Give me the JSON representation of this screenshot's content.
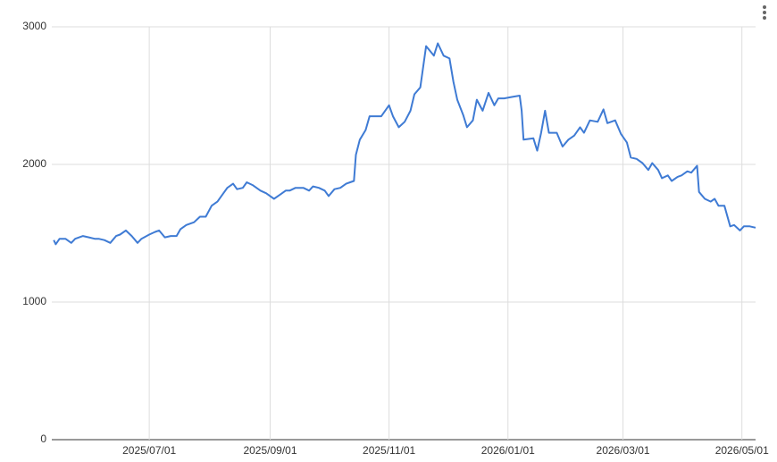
{
  "chart_data": {
    "type": "line",
    "x": [
      "2025/05/13",
      "2025/05/14",
      "2025/05/16",
      "2025/05/19",
      "2025/05/22",
      "2025/05/24",
      "2025/05/28",
      "2025/05/31",
      "2025/06/03",
      "2025/06/05",
      "2025/06/08",
      "2025/06/11",
      "2025/06/14",
      "2025/06/16",
      "2025/06/19",
      "2025/06/22",
      "2025/06/25",
      "2025/06/27",
      "2025/07/01",
      "2025/07/04",
      "2025/07/06",
      "2025/07/09",
      "2025/07/12",
      "2025/07/15",
      "2025/07/17",
      "2025/07/20",
      "2025/07/24",
      "2025/07/27",
      "2025/07/30",
      "2025/08/02",
      "2025/08/05",
      "2025/08/08",
      "2025/08/10",
      "2025/08/13",
      "2025/08/15",
      "2025/08/18",
      "2025/08/20",
      "2025/08/23",
      "2025/08/27",
      "2025/08/30",
      "2025/09/03",
      "2025/09/06",
      "2025/09/09",
      "2025/09/11",
      "2025/09/14",
      "2025/09/18",
      "2025/09/21",
      "2025/09/23",
      "2025/09/26",
      "2025/09/29",
      "2025/10/01",
      "2025/10/04",
      "2025/10/07",
      "2025/10/10",
      "2025/10/12",
      "2025/10/14",
      "2025/10/15",
      "2025/10/17",
      "2025/10/20",
      "2025/10/22",
      "2025/10/24",
      "2025/10/28",
      "2025/11/01",
      "2025/11/03",
      "2025/11/06",
      "2025/11/09",
      "2025/11/12",
      "2025/11/14",
      "2025/11/17",
      "2025/11/20",
      "2025/11/24",
      "2025/11/26",
      "2025/11/29",
      "2025/12/02",
      "2025/12/04",
      "2025/12/06",
      "2025/12/09",
      "2025/12/11",
      "2025/12/14",
      "2025/12/16",
      "2025/12/19",
      "2025/12/22",
      "2025/12/25",
      "2025/12/27",
      "2025/12/30",
      "2026/01/03",
      "2026/01/07",
      "2026/01/08",
      "2026/01/09",
      "2026/01/14",
      "2026/01/16",
      "2026/01/18",
      "2026/01/20",
      "2026/01/22",
      "2026/01/26",
      "2026/01/29",
      "2026/02/01",
      "2026/02/04",
      "2026/02/07",
      "2026/02/09",
      "2026/02/12",
      "2026/02/16",
      "2026/02/19",
      "2026/02/21",
      "2026/02/25",
      "2026/02/28",
      "2026/03/03",
      "2026/03/05",
      "2026/03/08",
      "2026/03/11",
      "2026/03/14",
      "2026/03/16",
      "2026/03/19",
      "2026/03/21",
      "2026/03/24",
      "2026/03/26",
      "2026/03/29",
      "2026/03/31",
      "2026/04/03",
      "2026/04/05",
      "2026/04/08",
      "2026/04/09",
      "2026/04/12",
      "2026/04/15",
      "2026/04/17",
      "2026/04/19",
      "2026/04/22",
      "2026/04/25",
      "2026/04/27",
      "2026/04/30",
      "2026/05/02",
      "2026/05/05",
      "2026/05/08"
    ],
    "series": [
      {
        "color": "#3f7bd4",
        "values": [
          1450,
          1420,
          1460,
          1460,
          1430,
          1460,
          1480,
          1470,
          1460,
          1460,
          1450,
          1430,
          1480,
          1490,
          1520,
          1480,
          1430,
          1460,
          1490,
          1510,
          1520,
          1470,
          1480,
          1480,
          1530,
          1560,
          1580,
          1620,
          1620,
          1700,
          1730,
          1790,
          1830,
          1860,
          1820,
          1830,
          1870,
          1850,
          1810,
          1790,
          1750,
          1780,
          1810,
          1810,
          1830,
          1830,
          1810,
          1840,
          1830,
          1810,
          1770,
          1820,
          1830,
          1860,
          1870,
          1880,
          2070,
          2180,
          2250,
          2350,
          2350,
          2350,
          2430,
          2350,
          2270,
          2310,
          2390,
          2510,
          2560,
          2860,
          2790,
          2880,
          2790,
          2770,
          2600,
          2470,
          2360,
          2270,
          2320,
          2470,
          2390,
          2520,
          2430,
          2480,
          2480,
          2490,
          2500,
          2390,
          2180,
          2190,
          2100,
          2230,
          2390,
          2230,
          2230,
          2130,
          2180,
          2210,
          2270,
          2230,
          2320,
          2310,
          2400,
          2300,
          2320,
          2220,
          2160,
          2050,
          2040,
          2010,
          1960,
          2010,
          1960,
          1900,
          1920,
          1880,
          1910,
          1920,
          1950,
          1940,
          1990,
          1800,
          1750,
          1730,
          1750,
          1700,
          1700,
          1550,
          1560,
          1520,
          1550,
          1550,
          1540
        ]
      }
    ],
    "xlim": [
      "2025/05/12",
      "2026/05/08"
    ],
    "xticks": [
      "2025/07/01",
      "2025/09/01",
      "2025/11/01",
      "2026/01/01",
      "2026/03/01",
      "2026/05/01"
    ],
    "ylim": [
      0,
      3000
    ],
    "yticks": [
      0,
      1000,
      2000,
      3000
    ],
    "grid": true
  }
}
